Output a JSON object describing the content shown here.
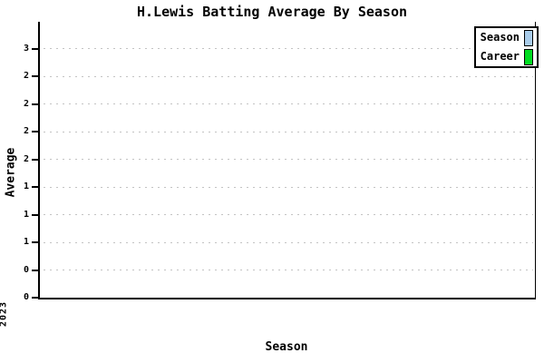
{
  "title": "H.Lewis Batting Average By Season",
  "yaxis": {
    "label": "Average",
    "tick_labels_top_to_bottom": [
      "3",
      "2",
      "2",
      "2",
      "2",
      "1",
      "1",
      "1",
      "0",
      "0"
    ]
  },
  "xaxis": {
    "label": "Season",
    "tick_labels": [
      "2023"
    ]
  },
  "legend": {
    "items": [
      {
        "label": "Season",
        "color": "#AACDEB"
      },
      {
        "label": "Career",
        "color": "#00DD22"
      }
    ]
  },
  "colors": {
    "background": "#ffffff",
    "axis": "#000000",
    "grid": "#c3c3c3",
    "season_swatch": "#AACDEB",
    "career_swatch": "#00DD22"
  },
  "chart_data": {
    "type": "bar",
    "title": "H.Lewis Batting Average By Season",
    "xlabel": "Season",
    "ylabel": "Average",
    "categories": [
      "2023"
    ],
    "series": [
      {
        "name": "Season",
        "color": "#AACDEB",
        "values": [
          0
        ]
      },
      {
        "name": "Career",
        "color": "#00DD22",
        "values": [
          0
        ]
      }
    ],
    "ylim": [
      0,
      3.0
    ],
    "y_tick_labels_bottom_to_top": [
      "0",
      "0",
      "1",
      "1",
      "1",
      "2",
      "2",
      "2",
      "2",
      "3"
    ],
    "grid": "horizontal-dashed",
    "legend_position": "top-right",
    "note": "no bars visibly rendered; plot area empty"
  }
}
